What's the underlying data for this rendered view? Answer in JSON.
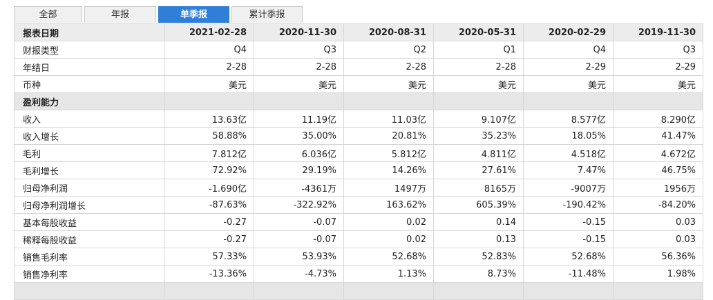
{
  "tabs": [
    "全部",
    "年报",
    "单季报",
    "累计季报"
  ],
  "active_tab": 2,
  "table": {
    "header": [
      "报表日期",
      "2021-02-28",
      "2020-11-30",
      "2020-08-31",
      "2020-05-31",
      "2020-02-29",
      "2019-11-30"
    ],
    "rows": [
      [
        "财报类型",
        "Q4",
        "Q3",
        "Q2",
        "Q1",
        "Q4",
        "Q3"
      ],
      [
        "年结日",
        "2-28",
        "2-28",
        "2-28",
        "2-28",
        "2-29",
        "2-29"
      ],
      [
        "币种",
        "美元",
        "美元",
        "美元",
        "美元",
        "美元",
        "美元"
      ],
      [
        "盈利能力"
      ],
      [
        "收入",
        "13.63亿",
        "11.19亿",
        "11.03亿",
        "9.107亿",
        "8.577亿",
        "8.290亿"
      ],
      [
        "收入增长",
        "58.88%",
        "35.00%",
        "20.81%",
        "35.23%",
        "18.05%",
        "41.47%"
      ],
      [
        "毛利",
        "7.812亿",
        "6.036亿",
        "5.812亿",
        "4.811亿",
        "4.518亿",
        "4.672亿"
      ],
      [
        "毛利增长",
        "72.92%",
        "29.19%",
        "14.26%",
        "27.61%",
        "7.47%",
        "46.75%"
      ],
      [
        "归母净利润",
        "-1.690亿",
        "-4361万",
        "1497万",
        "8165万",
        "-9007万",
        "1956万"
      ],
      [
        "归母净利润增长",
        "-87.63%",
        "-322.92%",
        "163.62%",
        "605.39%",
        "-190.42%",
        "-84.20%"
      ],
      [
        "基本每股收益",
        "-0.27",
        "-0.07",
        "0.02",
        "0.14",
        "-0.15",
        "0.03"
      ],
      [
        "稀释每股收益",
        "-0.27",
        "-0.07",
        "0.02",
        "0.13",
        "-0.15",
        "0.03"
      ],
      [
        "销售毛利率",
        "57.33%",
        "53.93%",
        "52.68%",
        "52.83%",
        "52.68%",
        "56.36%"
      ],
      [
        "销售净利率",
        "-13.36%",
        "-4.73%",
        "1.13%",
        "8.73%",
        "-11.48%",
        "1.98%"
      ]
    ]
  }
}
